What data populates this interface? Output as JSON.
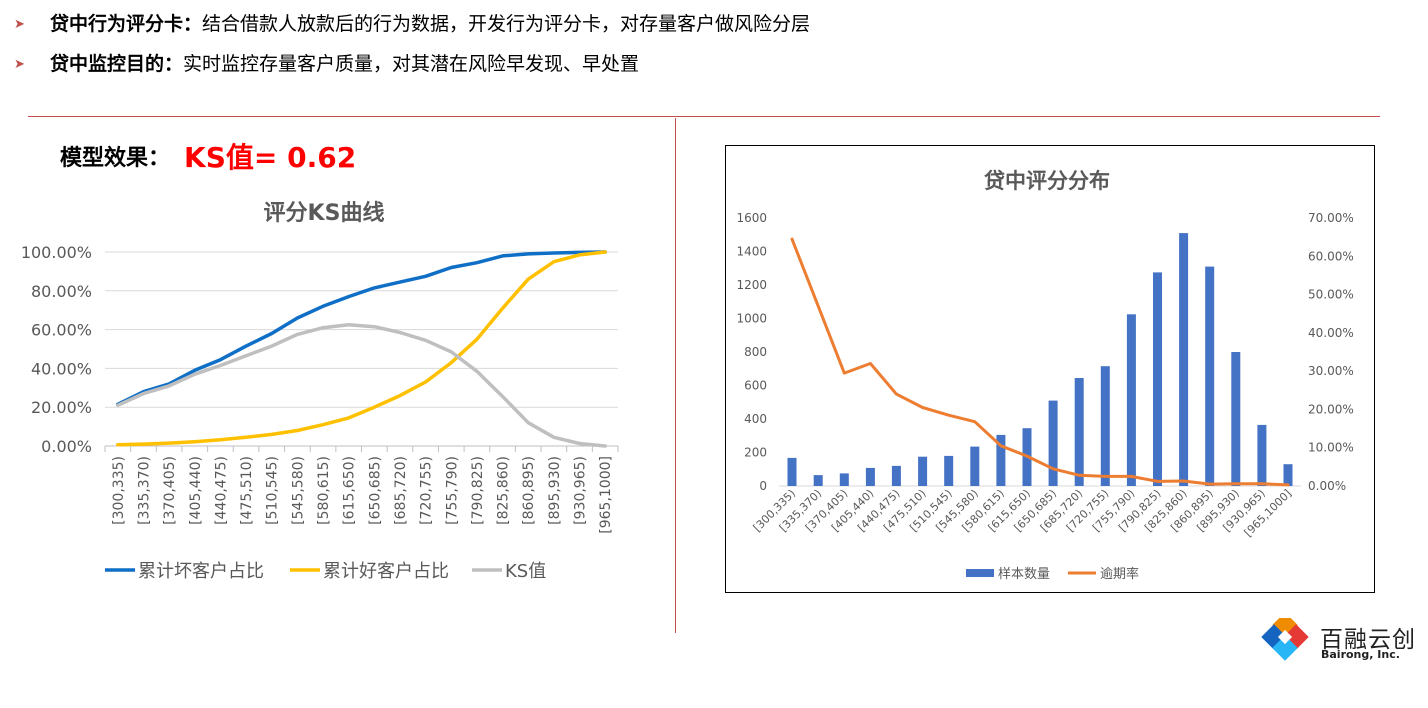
{
  "bullets": [
    {
      "bold": "贷中行为评分卡：",
      "text": "结合借款人放款后的行为数据，开发行为评分卡，对存量客户做风险分层"
    },
    {
      "bold": "贷中监控目的：",
      "text": "实时监控存量客户质量，对其潜在风险早发现、早处置"
    }
  ],
  "bullet_icon": "arrow-bullet-icon",
  "effect": {
    "label": "模型效果：",
    "value": "KS值= 0.62"
  },
  "chart_data": [
    {
      "type": "line",
      "title": "评分KS曲线",
      "categories": [
        "[300,335)",
        "[335,370)",
        "[370,405)",
        "[405,440)",
        "[440,475)",
        "[475,510)",
        "[510,545)",
        "[545,580)",
        "[580,615)",
        "[615,650)",
        "[650,685)",
        "[685,720)",
        "[720,755)",
        "[755,790)",
        "[790,825)",
        "[825,860)",
        "[860,895)",
        "[895,930)",
        "[930,965)",
        "[965,1000]"
      ],
      "y_ticks": [
        "0.00%",
        "20.00%",
        "40.00%",
        "60.00%",
        "80.00%",
        "100.00%"
      ],
      "ylim": [
        0,
        100
      ],
      "grid": true,
      "legend_position": "bottom",
      "series": [
        {
          "name": "累计坏客户占比",
          "color": "#0f6fc6",
          "values": [
            21.5,
            28,
            32,
            39,
            44.5,
            51.5,
            58,
            66,
            72,
            77,
            81.5,
            84.5,
            87.5,
            92,
            94.5,
            98,
            99,
            99.5,
            99.8,
            100
          ]
        },
        {
          "name": "累计好客户占比",
          "color": "#ffc000",
          "values": [
            0.6,
            1,
            1.5,
            2.2,
            3.2,
            4.5,
            6,
            8,
            11,
            14.5,
            20,
            26,
            33,
            43,
            55,
            71,
            86,
            95,
            98.5,
            100
          ]
        },
        {
          "name": "KS值",
          "color": "#bfbfbf",
          "values": [
            21,
            27,
            31,
            37,
            41.5,
            46.5,
            51.5,
            57.5,
            61,
            62.5,
            61.5,
            58.5,
            54.5,
            48.5,
            38.5,
            25.5,
            12,
            4.5,
            1.3,
            0
          ]
        }
      ]
    },
    {
      "type": "bar",
      "title": "贷中评分分布",
      "categories": [
        "[300,335)",
        "[335,370)",
        "[370,405)",
        "[405,440)",
        "[440,475)",
        "[475,510)",
        "[510,545)",
        "[545,580)",
        "[580,615)",
        "[615,650)",
        "[650,685)",
        "[685,720)",
        "[720,755)",
        "[755,790)",
        "[790,825)",
        "[825,860)",
        "[860,895)",
        "[895,930)",
        "[930,965)",
        "[965,1000]"
      ],
      "y_left_ticks": [
        "0",
        "200",
        "400",
        "600",
        "800",
        "1000",
        "1200",
        "1400",
        "1600"
      ],
      "y_right_ticks": [
        "0.00%",
        "10.00%",
        "20.00%",
        "30.00%",
        "40.00%",
        "50.00%",
        "60.00%",
        "70.00%"
      ],
      "ylim_left": [
        0,
        1600
      ],
      "ylim_right": [
        0,
        70
      ],
      "grid": false,
      "legend_position": "bottom",
      "series": [
        {
          "name": "样本数量",
          "type": "bar",
          "axis": "left",
          "color": "#4472c4",
          "values": [
            168,
            65,
            75,
            108,
            120,
            175,
            180,
            235,
            305,
            345,
            510,
            645,
            715,
            1025,
            1275,
            1510,
            1310,
            800,
            365,
            130
          ]
        },
        {
          "name": "逾期率",
          "type": "line",
          "axis": "right",
          "color": "#ed7d31",
          "values": [
            64.5,
            47,
            29.5,
            32,
            24,
            20.5,
            18.5,
            16.8,
            10.5,
            7.8,
            4.5,
            2.8,
            2.5,
            2.5,
            1.2,
            1.3,
            0.5,
            0.6,
            0.6,
            0.3
          ]
        }
      ]
    }
  ],
  "logo": {
    "icon": "bairong-logo-icon",
    "name": "百融云创",
    "sub": "Bairong, Inc."
  }
}
